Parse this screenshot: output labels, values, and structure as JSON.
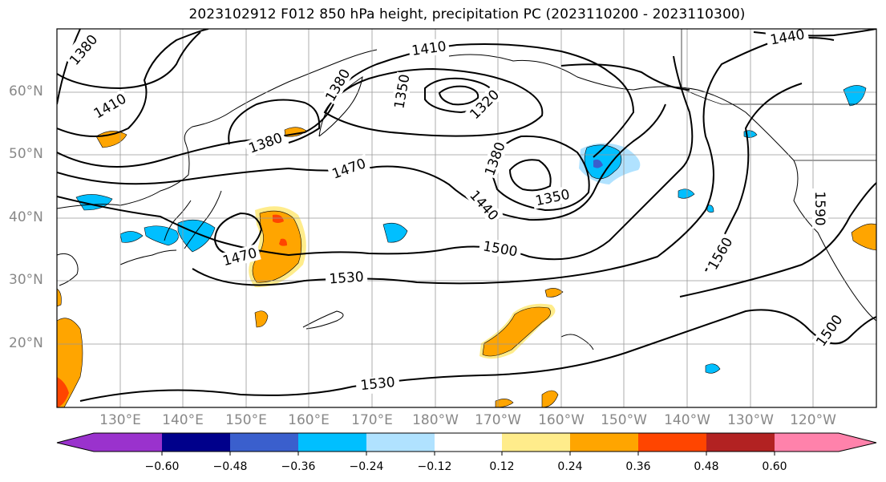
{
  "title": "2023102912 F012 850 hPa height, precipitation PC (2023110200 - 2023110300)",
  "lat_labels": [
    "60°N",
    "50°N",
    "40°N",
    "30°N",
    "20°N"
  ],
  "lon_labels": [
    "130°E",
    "140°E",
    "150°E",
    "160°E",
    "170°E",
    "180°W",
    "170°W",
    "160°W",
    "150°W",
    "140°W",
    "130°W",
    "120°W"
  ],
  "contour_labels": [
    "1380",
    "1410",
    "1410",
    "1440",
    "1380",
    "1350",
    "1320",
    "1380",
    "1470",
    "1380",
    "1350",
    "1440",
    "1590",
    "1500",
    "1470",
    "1530",
    "1560",
    "1500",
    "1530"
  ],
  "colorbar": {
    "ticks": [
      "−0.60",
      "−0.48",
      "−0.36",
      "−0.24",
      "−0.12",
      "0.12",
      "0.24",
      "0.36",
      "0.48",
      "0.60"
    ],
    "colors": [
      "#9a32cd",
      "#00008b",
      "#3a5fcd",
      "#00bfff",
      "#b0e2ff",
      "#ffffff",
      "#ffec8b",
      "#ffa500",
      "#ff4500",
      "#b22222",
      "#ff82ab"
    ]
  }
}
